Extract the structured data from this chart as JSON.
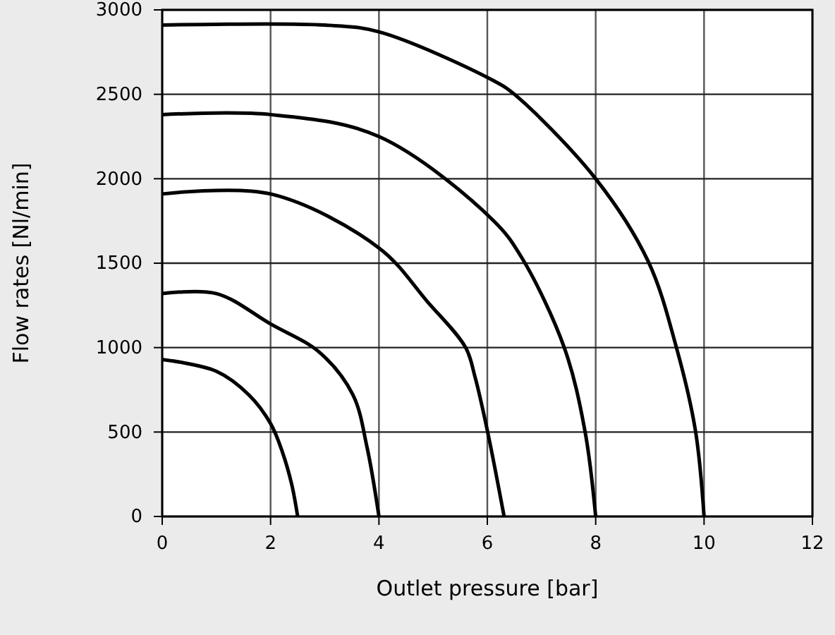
{
  "chart_data": {
    "type": "line",
    "xlabel": "Outlet pressure [bar]",
    "ylabel": "Flow rates [Nl/min]",
    "xlim": [
      0,
      12
    ],
    "ylim": [
      0,
      3000
    ],
    "xticks": [
      0,
      2,
      4,
      6,
      8,
      10,
      12
    ],
    "yticks": [
      0,
      500,
      1000,
      1500,
      2000,
      2500,
      3000
    ],
    "grid": true,
    "marker": "none",
    "line_style": "solid",
    "series": [
      {
        "color": "#000000",
        "x": [
          0,
          1,
          1.6,
          2,
          2.22,
          2.39,
          2.5
        ],
        "values": [
          930,
          860,
          720,
          550,
          380,
          190,
          0
        ]
      },
      {
        "color": "#000000",
        "x": [
          0,
          1,
          2,
          2.91,
          3.52,
          3.78,
          4
        ],
        "values": [
          1320,
          1320,
          1140,
          970,
          720,
          410,
          0
        ]
      },
      {
        "color": "#000000",
        "x": [
          0,
          2,
          4,
          4.9,
          5.6,
          5.77,
          6,
          6.31
        ],
        "values": [
          1910,
          1910,
          1590,
          1270,
          1000,
          830,
          510,
          0
        ]
      },
      {
        "color": "#000000",
        "x": [
          0,
          2,
          4,
          6.12,
          6.64,
          7.42,
          7.8,
          8
        ],
        "values": [
          2380,
          2380,
          2250,
          1750,
          1530,
          1000,
          510,
          0
        ]
      },
      {
        "color": "#000000",
        "x": [
          0,
          3,
          4,
          6.12,
          6.5,
          8,
          8.97,
          9.49,
          9.84,
          10
        ],
        "values": [
          2910,
          2910,
          2870,
          2580,
          2500,
          2000,
          1510,
          1000,
          510,
          0
        ]
      }
    ]
  }
}
